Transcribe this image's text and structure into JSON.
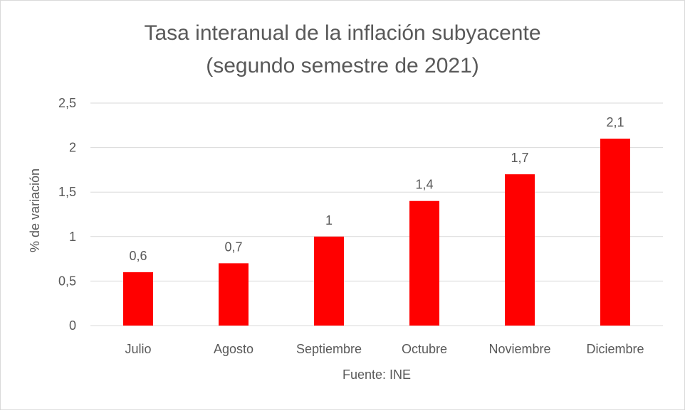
{
  "chart_data": {
    "type": "bar",
    "title": "Tasa interanual de la inflación subyacente",
    "subtitle": "(segundo semestre de 2021)",
    "categories": [
      "Julio",
      "Agosto",
      "Septiembre",
      "Octubre",
      "Noviembre",
      "Diciembre"
    ],
    "values": [
      0.6,
      0.7,
      1,
      1.4,
      1.7,
      2.1
    ],
    "value_labels": [
      "0,6",
      "0,7",
      "1",
      "1,4",
      "1,7",
      "2,1"
    ],
    "xlabel": "Fuente: INE",
    "ylabel": "% de variación",
    "ylim": [
      0,
      2.5
    ],
    "yticks": [
      0,
      0.5,
      1,
      1.5,
      2,
      2.5
    ],
    "ytick_labels": [
      "0",
      "0,5",
      "1",
      "1,5",
      "2",
      "2,5"
    ],
    "grid": true,
    "bar_color": "#ff0000",
    "grid_color": "#d9d9d9",
    "text_color": "#595959"
  }
}
